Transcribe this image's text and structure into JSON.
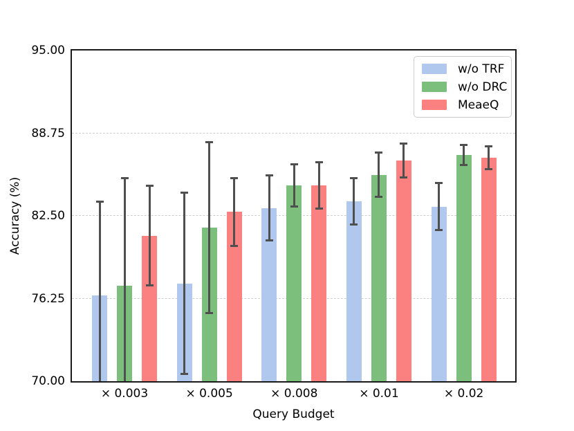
{
  "chart_data": {
    "type": "bar",
    "title": "",
    "xlabel": "Query Budget",
    "ylabel": "Accuracy (%)",
    "categories": [
      "× 0.003",
      "× 0.005",
      "× 0.008",
      "× 0.01",
      "× 0.02"
    ],
    "series": [
      {
        "name": "w/o TRF",
        "color": "#b0c8ee",
        "values": [
          76.5,
          77.4,
          83.1,
          83.6,
          83.2
        ],
        "errors": [
          7.1,
          6.9,
          2.5,
          1.8,
          1.8
        ]
      },
      {
        "name": "w/o DRC",
        "color": "#7cbf7c",
        "values": [
          77.2,
          81.6,
          84.8,
          85.6,
          87.1
        ],
        "errors": [
          8.2,
          6.5,
          1.6,
          1.7,
          0.8
        ]
      },
      {
        "name": "MeaeQ",
        "color": "#fb8080",
        "values": [
          81.0,
          82.8,
          84.8,
          86.7,
          86.9
        ],
        "errors": [
          3.8,
          2.6,
          1.8,
          1.3,
          0.9
        ]
      }
    ],
    "ylim": [
      70,
      95
    ],
    "yticks": [
      "95.00",
      "88.75",
      "82.50",
      "76.25",
      "70.00"
    ],
    "ytick_values": [
      95,
      88.75,
      82.5,
      76.25,
      70
    ],
    "gridline_values": [
      88.75,
      82.5,
      76.25
    ],
    "grid": "horizontal-dashed",
    "legend_position": "upper-right",
    "error_bar_color": "#4f4f4f",
    "error_caps_clipped_below_axis": [
      "w/o TRF @ × 0.003",
      "w/o DRC @ × 0.003"
    ]
  }
}
